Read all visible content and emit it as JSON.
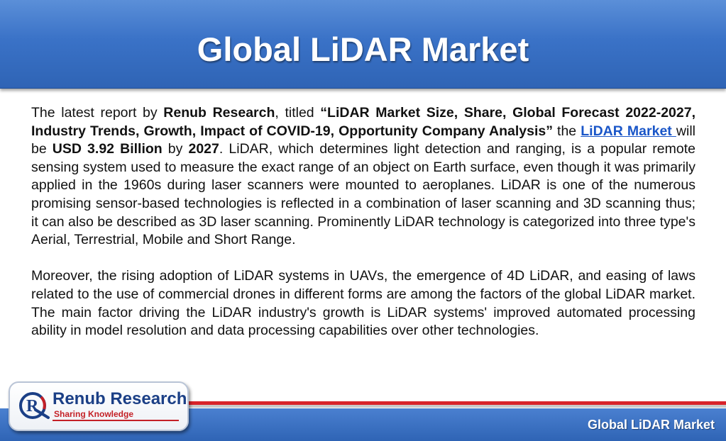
{
  "header": {
    "title": "Global LiDAR Market"
  },
  "body": {
    "p1": {
      "intro": "The latest report by ",
      "publisher": "Renub Research",
      "titled": ", titled ",
      "report_title": "“LiDAR Market Size, Share, Global Forecast 2022-2027, Industry Trends, Growth, Impact of COVID-19, Opportunity Company Analysis”",
      "the": " the ",
      "link_text": "LiDAR Market ",
      "will_be": "will be ",
      "value": "USD 3.92 Billion",
      "by": " by ",
      "year": "2027",
      "rest": ". LiDAR, which determines light detection and ranging, is a popular remote sensing system used to measure the exact range of an object on Earth surface, even though it was primarily applied in the 1960s during laser scanners were mounted to aeroplanes. LiDAR is one of the numerous promising sensor-based technologies is reflected in a combination of laser scanning and 3D scanning thus; it can also be described as 3D laser scanning. Prominently LiDAR technology is categorized into three type's Aerial, Terrestrial, Mobile and Short Range."
    },
    "p2": "Moreover, the rising adoption of LiDAR systems in UAVs, the emergence of 4D LiDAR, and easing of laws related to the use of commercial drones in different forms are among the factors of the global LiDAR market. The main factor driving the LiDAR industry's growth is LiDAR systems' improved automated processing ability in model resolution and data processing capabilities over other technologies."
  },
  "footer": {
    "title": "Global LiDAR Market",
    "logo": {
      "name": "Renub Research",
      "tagline": "Sharing Knowledge"
    }
  },
  "colors": {
    "header_blue": "#3a72c7",
    "link_blue": "#1a56c8",
    "accent_red": "#d8232a",
    "logo_navy": "#1b3f86"
  }
}
